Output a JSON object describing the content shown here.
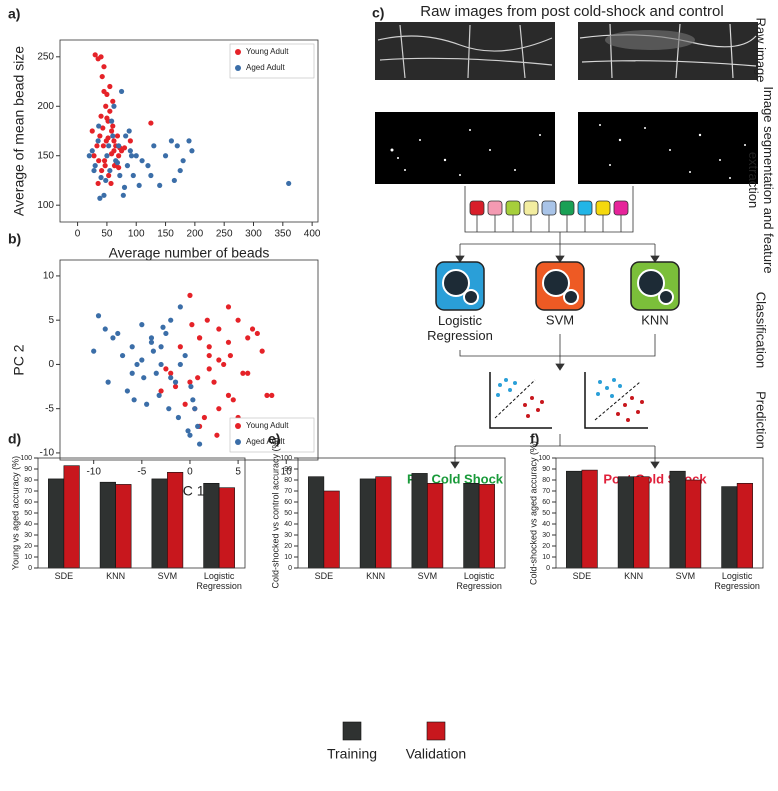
{
  "chart_data": [
    {
      "type": "scatter",
      "panel": "a)",
      "xlabel": "Average number of beads",
      "ylabel": "Average of mean bead size",
      "xlim": [
        -30,
        410
      ],
      "ylim": [
        83,
        267
      ],
      "xticks": [
        0,
        50,
        100,
        150,
        200,
        250,
        300,
        350,
        400
      ],
      "yticks": [
        100,
        150,
        200,
        250
      ],
      "legend": "upper right",
      "series": [
        {
          "name": "Young Adult",
          "color": "#e52228",
          "x": [
            30,
            35,
            40,
            42,
            45,
            48,
            50,
            52,
            55,
            58,
            60,
            62,
            65,
            68,
            70,
            72,
            75,
            38,
            44,
            36,
            28,
            25,
            47,
            53,
            57,
            63,
            41,
            33,
            49,
            66,
            80,
            90,
            125,
            55,
            45,
            60,
            50,
            35,
            70,
            40,
            58,
            46,
            52,
            62,
            43
          ],
          "y": [
            252,
            248,
            250,
            230,
            215,
            200,
            212,
            185,
            195,
            175,
            180,
            165,
            160,
            170,
            150,
            158,
            155,
            170,
            160,
            145,
            150,
            175,
            140,
            130,
            122,
            140,
            135,
            160,
            165,
            142,
            158,
            165,
            183,
            220,
            240,
            205,
            188,
            122,
            138,
            190,
            152,
            145,
            168,
            155,
            178
          ]
        },
        {
          "name": "Aged Adult",
          "color": "#3b6ea8",
          "x": [
            20,
            25,
            30,
            35,
            40,
            45,
            50,
            55,
            60,
            65,
            70,
            75,
            80,
            85,
            90,
            95,
            100,
            110,
            120,
            130,
            140,
            150,
            160,
            170,
            180,
            190,
            195,
            165,
            175,
            125,
            105,
            88,
            78,
            68,
            58,
            48,
            38,
            28,
            62,
            72,
            82,
            92,
            360,
            36,
            53
          ],
          "y": [
            150,
            155,
            140,
            165,
            128,
            110,
            150,
            135,
            170,
            145,
            160,
            215,
            118,
            140,
            155,
            130,
            150,
            145,
            140,
            160,
            120,
            150,
            165,
            160,
            145,
            165,
            155,
            125,
            135,
            130,
            120,
            175,
            110,
            143,
            185,
            125,
            107,
            135,
            200,
            130,
            170,
            150,
            122,
            180,
            160
          ]
        }
      ]
    },
    {
      "type": "scatter",
      "panel": "b)",
      "xlabel": "PC 1",
      "ylabel": "PC 2",
      "xlim": [
        -13.5,
        13.3
      ],
      "ylim": [
        -10.8,
        11.8
      ],
      "xticks": [
        -10,
        -5,
        0,
        5,
        10
      ],
      "yticks": [
        -10,
        -5,
        0,
        5,
        10
      ],
      "legend": "lower right",
      "series": [
        {
          "name": "Young Adult",
          "color": "#e52228",
          "x": [
            0,
            1,
            2,
            3,
            4,
            5,
            6,
            7,
            8,
            -1,
            -2,
            -3,
            2.5,
            3.5,
            4.5,
            1.5,
            0.5,
            -0.5,
            6.5,
            5.5,
            2,
            3,
            4,
            1,
            0,
            -1.5,
            7.5,
            8.5,
            3,
            1,
            2,
            4,
            5,
            0.2,
            -2.5,
            6,
            1.8,
            4.2,
            2.8,
            0.8
          ],
          "y": [
            7.8,
            3,
            2,
            4,
            6.5,
            5,
            3,
            3.5,
            -3.5,
            2,
            -1,
            -3,
            -2,
            0,
            -4,
            -6,
            -5,
            -4.5,
            4,
            -1,
            1,
            -5,
            -3.5,
            -7,
            -2,
            -2.5,
            1.5,
            -3.5,
            0.5,
            3,
            -0.5,
            2.5,
            -6,
            4.5,
            -0.5,
            -1,
            5,
            1,
            -8,
            -1.5
          ]
        },
        {
          "name": "Aged Adult",
          "color": "#3b6ea8",
          "x": [
            -10,
            -9.5,
            -8,
            -7,
            -6,
            -5,
            -4,
            -3,
            -2,
            -1,
            0,
            1,
            -8.5,
            -6.5,
            -5.5,
            -4.5,
            -3.5,
            -2.5,
            -1.5,
            -0.5,
            0.5,
            -0.2,
            0.1,
            -4,
            -3,
            -2,
            -7.5,
            -5,
            -6,
            -1,
            -3.2,
            -2.2,
            0.3,
            -4.8,
            -8.8,
            -1.2,
            0.8,
            -3.8,
            -5.8,
            -2.8
          ],
          "y": [
            1.5,
            5.5,
            3,
            1,
            -1,
            4.5,
            3,
            2,
            5,
            6.5,
            -8,
            -9,
            -2,
            -3,
            0,
            -4.5,
            -1,
            3.5,
            -2,
            1,
            -5,
            -7.5,
            -2.5,
            2.5,
            0,
            -1.5,
            3.5,
            0.5,
            2,
            0,
            -3.5,
            -5,
            -4,
            -1.5,
            4,
            -6,
            -7,
            1.5,
            -4,
            4.2
          ]
        }
      ]
    },
    {
      "type": "bar",
      "panel": "d)",
      "ylabel": "Young vs aged accuracy (%)",
      "ylim": [
        0,
        100
      ],
      "yticks": [
        0,
        10,
        20,
        30,
        40,
        50,
        60,
        70,
        80,
        90,
        100
      ],
      "categories": [
        "SDE",
        "KNN",
        "SVM",
        "Logistic Regression"
      ],
      "series": [
        {
          "name": "Training",
          "color": "#2f3231",
          "values": [
            81,
            78,
            81,
            77
          ]
        },
        {
          "name": "Validation",
          "color": "#c8171d",
          "values": [
            93,
            76,
            87,
            73
          ]
        }
      ]
    },
    {
      "type": "bar",
      "panel": "e)",
      "ylabel": "Cold-shocked vs control accuracy (%)",
      "ylim": [
        0,
        100
      ],
      "yticks": [
        0,
        10,
        20,
        30,
        40,
        50,
        60,
        70,
        80,
        90,
        100
      ],
      "categories": [
        "SDE",
        "KNN",
        "SVM",
        "Logistic Regression"
      ],
      "series": [
        {
          "name": "Training",
          "color": "#2f3231",
          "values": [
            83,
            81,
            86,
            77
          ]
        },
        {
          "name": "Validation",
          "color": "#c8171d",
          "values": [
            70,
            83,
            77,
            76
          ]
        }
      ]
    },
    {
      "type": "bar",
      "panel": "f)",
      "ylabel": "Cold-shocked vs aged accuracy (%)",
      "ylim": [
        0,
        100
      ],
      "yticks": [
        0,
        10,
        20,
        30,
        40,
        50,
        60,
        70,
        80,
        90,
        100
      ],
      "categories": [
        "SDE",
        "KNN",
        "SVM",
        "Logistic Regression"
      ],
      "series": [
        {
          "name": "Training",
          "color": "#2f3231",
          "values": [
            88,
            83,
            88,
            74
          ]
        },
        {
          "name": "Validation",
          "color": "#c8171d",
          "values": [
            89,
            83,
            80,
            77
          ]
        }
      ]
    }
  ],
  "diagram": {
    "panel": "c)",
    "title": "Raw images from post cold-shock and control",
    "row_labels": [
      "Raw image",
      "Image segmentation and feature extraction",
      "Classification",
      "Prediction"
    ],
    "classifiers": [
      "Logistic Regression",
      "SVM",
      "KNN"
    ],
    "outcomes": [
      "Pre Cold Shock",
      "Post Cold Shock"
    ]
  }
}
